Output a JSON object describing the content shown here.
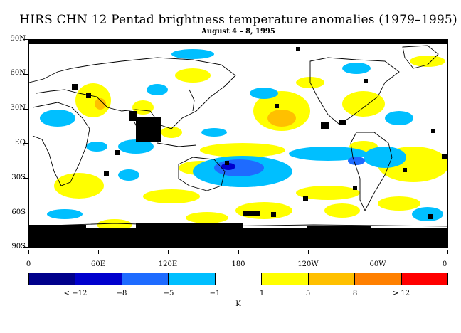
{
  "title": "HIRS CHN 12 Pentad brightness temperature anomalies (1979–1995)",
  "subtitle": "August 4 – 8, 1995",
  "y_axis_labels": [
    "90N",
    "60N",
    "30N",
    "EQ",
    "30S",
    "60S",
    "90S"
  ],
  "x_axis_labels": [
    "0",
    "60E",
    "120E",
    "180",
    "120W",
    "60W",
    "0"
  ],
  "colorbar": {
    "colors": [
      "#00008b",
      "#0000cd",
      "#1e6bff",
      "#00bfff",
      "#ffffff",
      "#ffff00",
      "#ffc000",
      "#ff8000",
      "#ff0000"
    ],
    "labels": [
      "< −12",
      "−8",
      "−5",
      "−1",
      "1",
      "5",
      "8",
      "> 12"
    ],
    "unit": "K"
  },
  "palette": {
    "missing": "#000000",
    "land_outline": "#000000"
  }
}
